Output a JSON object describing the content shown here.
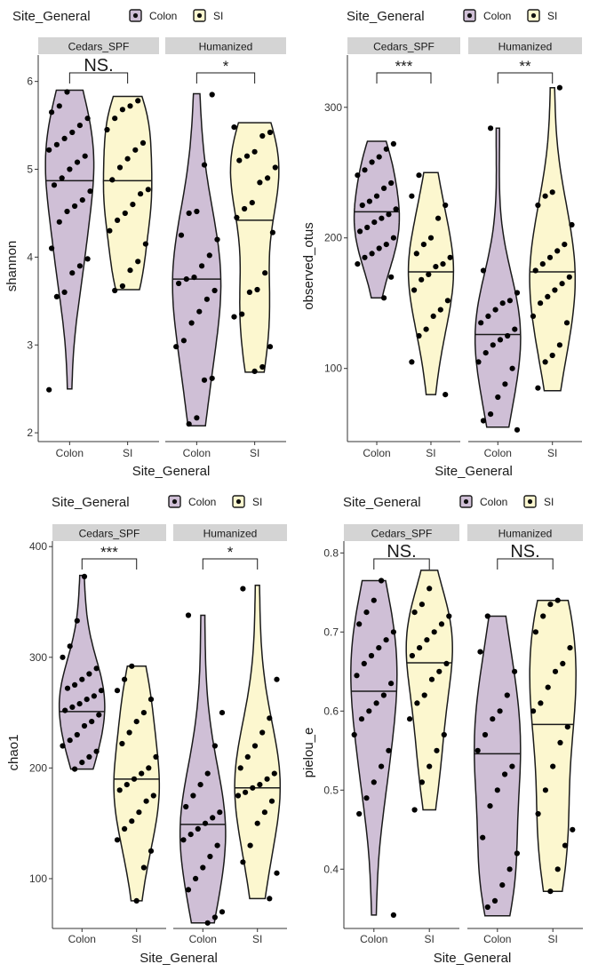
{
  "legend": {
    "title": "Site_General",
    "items": [
      "Colon",
      "SI"
    ]
  },
  "colors": {
    "Colon": "#cfbfd6",
    "SI": "#fcf7cf",
    "strip": "#d4d4d4",
    "points": "#000000"
  },
  "chart_data": [
    {
      "type": "violin",
      "xlabel": "Site_General",
      "ylabel": "shannon",
      "ylim": [
        1.9,
        6.3
      ],
      "yticks": [
        2,
        3,
        4,
        5,
        6
      ],
      "facets": [
        {
          "name": "Cedars_SPF",
          "categories": [
            "Colon",
            "SI"
          ],
          "sig": "NS.",
          "groups": [
            {
              "site": "Colon",
              "min": 2.5,
              "max": 5.9,
              "median": 4.87,
              "points": [
                2.49,
                3.55,
                3.6,
                3.82,
                3.9,
                3.98,
                4.1,
                4.4,
                4.52,
                4.58,
                4.65,
                4.75,
                4.82,
                4.9,
                5.0,
                5.08,
                5.15,
                5.22,
                5.28,
                5.35,
                5.42,
                5.5,
                5.58,
                5.65,
                5.72,
                5.88
              ]
            },
            {
              "site": "SI",
              "min": 3.63,
              "max": 5.83,
              "median": 4.87,
              "points": [
                3.62,
                3.67,
                3.85,
                3.95,
                4.15,
                4.3,
                4.42,
                4.5,
                4.6,
                4.72,
                4.77,
                4.88,
                5.02,
                5.12,
                5.22,
                5.3,
                5.45,
                5.58,
                5.68,
                5.72,
                5.78
              ]
            }
          ]
        },
        {
          "name": "Humanized",
          "categories": [
            "Colon",
            "SI"
          ],
          "sig": "*",
          "groups": [
            {
              "site": "Colon",
              "min": 2.08,
              "max": 5.86,
              "median": 3.75,
              "points": [
                2.1,
                2.17,
                2.6,
                2.62,
                2.98,
                3.05,
                3.25,
                3.38,
                3.52,
                3.62,
                3.7,
                3.75,
                3.77,
                3.9,
                4.02,
                4.2,
                4.25,
                4.5,
                4.52,
                5.05,
                5.85
              ]
            },
            {
              "site": "SI",
              "min": 2.69,
              "max": 5.53,
              "median": 4.42,
              "points": [
                2.7,
                2.75,
                2.98,
                3.32,
                3.35,
                3.6,
                3.63,
                3.82,
                4.28,
                4.45,
                4.55,
                4.62,
                4.85,
                4.9,
                5.02,
                5.1,
                5.15,
                5.2,
                5.38,
                5.42,
                5.48
              ]
            }
          ]
        }
      ]
    },
    {
      "type": "violin",
      "xlabel": "Site_General",
      "ylabel": "observed_otus",
      "ylim": [
        44,
        340
      ],
      "yticks": [
        100,
        200,
        300
      ],
      "facets": [
        {
          "name": "Cedars_SPF",
          "categories": [
            "Colon",
            "SI"
          ],
          "sig": "***",
          "groups": [
            {
              "site": "Colon",
              "min": 154,
              "max": 274,
              "median": 220,
              "points": [
                154,
                170,
                180,
                185,
                188,
                192,
                195,
                200,
                205,
                208,
                212,
                215,
                218,
                222,
                225,
                228,
                232,
                238,
                242,
                248,
                252,
                258,
                262,
                268,
                272
              ]
            },
            {
              "site": "SI",
              "min": 80,
              "max": 250,
              "median": 174,
              "points": [
                80,
                105,
                125,
                130,
                140,
                145,
                152,
                160,
                168,
                172,
                178,
                180,
                185,
                188,
                195,
                200,
                215,
                225,
                232,
                248
              ]
            }
          ]
        },
        {
          "name": "Humanized",
          "categories": [
            "Colon",
            "SI"
          ],
          "sig": "**",
          "groups": [
            {
              "site": "Colon",
              "min": 55,
              "max": 284,
              "median": 126,
              "points": [
                53,
                60,
                65,
                78,
                88,
                100,
                105,
                112,
                118,
                122,
                125,
                130,
                135,
                140,
                145,
                150,
                152,
                158,
                175,
                284
              ]
            },
            {
              "site": "SI",
              "min": 83,
              "max": 315,
              "median": 174,
              "points": [
                85,
                105,
                110,
                118,
                135,
                140,
                150,
                155,
                160,
                165,
                170,
                175,
                180,
                185,
                190,
                195,
                210,
                225,
                232,
                235,
                315
              ]
            }
          ]
        }
      ]
    },
    {
      "type": "violin",
      "xlabel": "Site_General",
      "ylabel": "chao1",
      "ylim": [
        55,
        405
      ],
      "yticks": [
        100,
        200,
        300,
        400
      ],
      "facets": [
        {
          "name": "Cedars_SPF",
          "categories": [
            "Colon",
            "SI"
          ],
          "sig": "***",
          "groups": [
            {
              "site": "Colon",
              "min": 199,
              "max": 374,
              "median": 251,
              "points": [
                199,
                205,
                210,
                215,
                220,
                225,
                230,
                238,
                242,
                248,
                252,
                255,
                258,
                262,
                265,
                270,
                272,
                275,
                280,
                285,
                290,
                300,
                310,
                333,
                373
              ]
            },
            {
              "site": "SI",
              "min": 80,
              "max": 292,
              "median": 190,
              "points": [
                80,
                110,
                125,
                135,
                145,
                152,
                160,
                170,
                175,
                180,
                185,
                190,
                195,
                200,
                210,
                222,
                232,
                242,
                250,
                262,
                270,
                280,
                292
              ]
            }
          ]
        },
        {
          "name": "Humanized",
          "categories": [
            "Colon",
            "SI"
          ],
          "sig": "*",
          "groups": [
            {
              "site": "Colon",
              "min": 60,
              "max": 338,
              "median": 149,
              "points": [
                60,
                65,
                70,
                90,
                100,
                110,
                120,
                130,
                135,
                140,
                145,
                150,
                155,
                160,
                165,
                175,
                185,
                195,
                220,
                250,
                338
              ]
            },
            {
              "site": "SI",
              "min": 82,
              "max": 365,
              "median": 182,
              "points": [
                82,
                105,
                115,
                130,
                150,
                160,
                170,
                175,
                178,
                182,
                185,
                190,
                195,
                200,
                210,
                220,
                232,
                245,
                280,
                362
              ]
            }
          ]
        }
      ]
    },
    {
      "type": "violin",
      "xlabel": "Site_General",
      "ylabel": "pielou_e",
      "ylim": [
        0.325,
        0.815
      ],
      "yticks": [
        0.4,
        0.5,
        0.6,
        0.7,
        0.8
      ],
      "facets": [
        {
          "name": "Cedars_SPF",
          "categories": [
            "Colon",
            "SI"
          ],
          "sig": "NS.",
          "groups": [
            {
              "site": "Colon",
              "min": 0.342,
              "max": 0.765,
              "median": 0.625,
              "points": [
                0.342,
                0.47,
                0.49,
                0.51,
                0.53,
                0.55,
                0.57,
                0.59,
                0.6,
                0.61,
                0.62,
                0.635,
                0.645,
                0.66,
                0.67,
                0.68,
                0.69,
                0.7,
                0.71,
                0.725,
                0.74,
                0.765
              ]
            },
            {
              "site": "SI",
              "min": 0.475,
              "max": 0.778,
              "median": 0.661,
              "points": [
                0.475,
                0.51,
                0.53,
                0.55,
                0.57,
                0.59,
                0.61,
                0.62,
                0.64,
                0.65,
                0.66,
                0.67,
                0.68,
                0.69,
                0.7,
                0.71,
                0.72,
                0.725,
                0.735,
                0.755
              ]
            }
          ]
        },
        {
          "name": "Humanized",
          "categories": [
            "Colon",
            "SI"
          ],
          "sig": "NS.",
          "groups": [
            {
              "site": "Colon",
              "min": 0.341,
              "max": 0.72,
              "median": 0.546,
              "points": [
                0.352,
                0.36,
                0.38,
                0.4,
                0.42,
                0.44,
                0.48,
                0.5,
                0.52,
                0.53,
                0.55,
                0.57,
                0.59,
                0.6,
                0.62,
                0.65,
                0.675,
                0.72
              ]
            },
            {
              "site": "SI",
              "min": 0.372,
              "max": 0.74,
              "median": 0.583,
              "points": [
                0.372,
                0.4,
                0.43,
                0.45,
                0.47,
                0.5,
                0.53,
                0.56,
                0.58,
                0.6,
                0.61,
                0.63,
                0.65,
                0.66,
                0.68,
                0.7,
                0.72,
                0.735,
                0.74
              ]
            }
          ]
        }
      ]
    }
  ]
}
